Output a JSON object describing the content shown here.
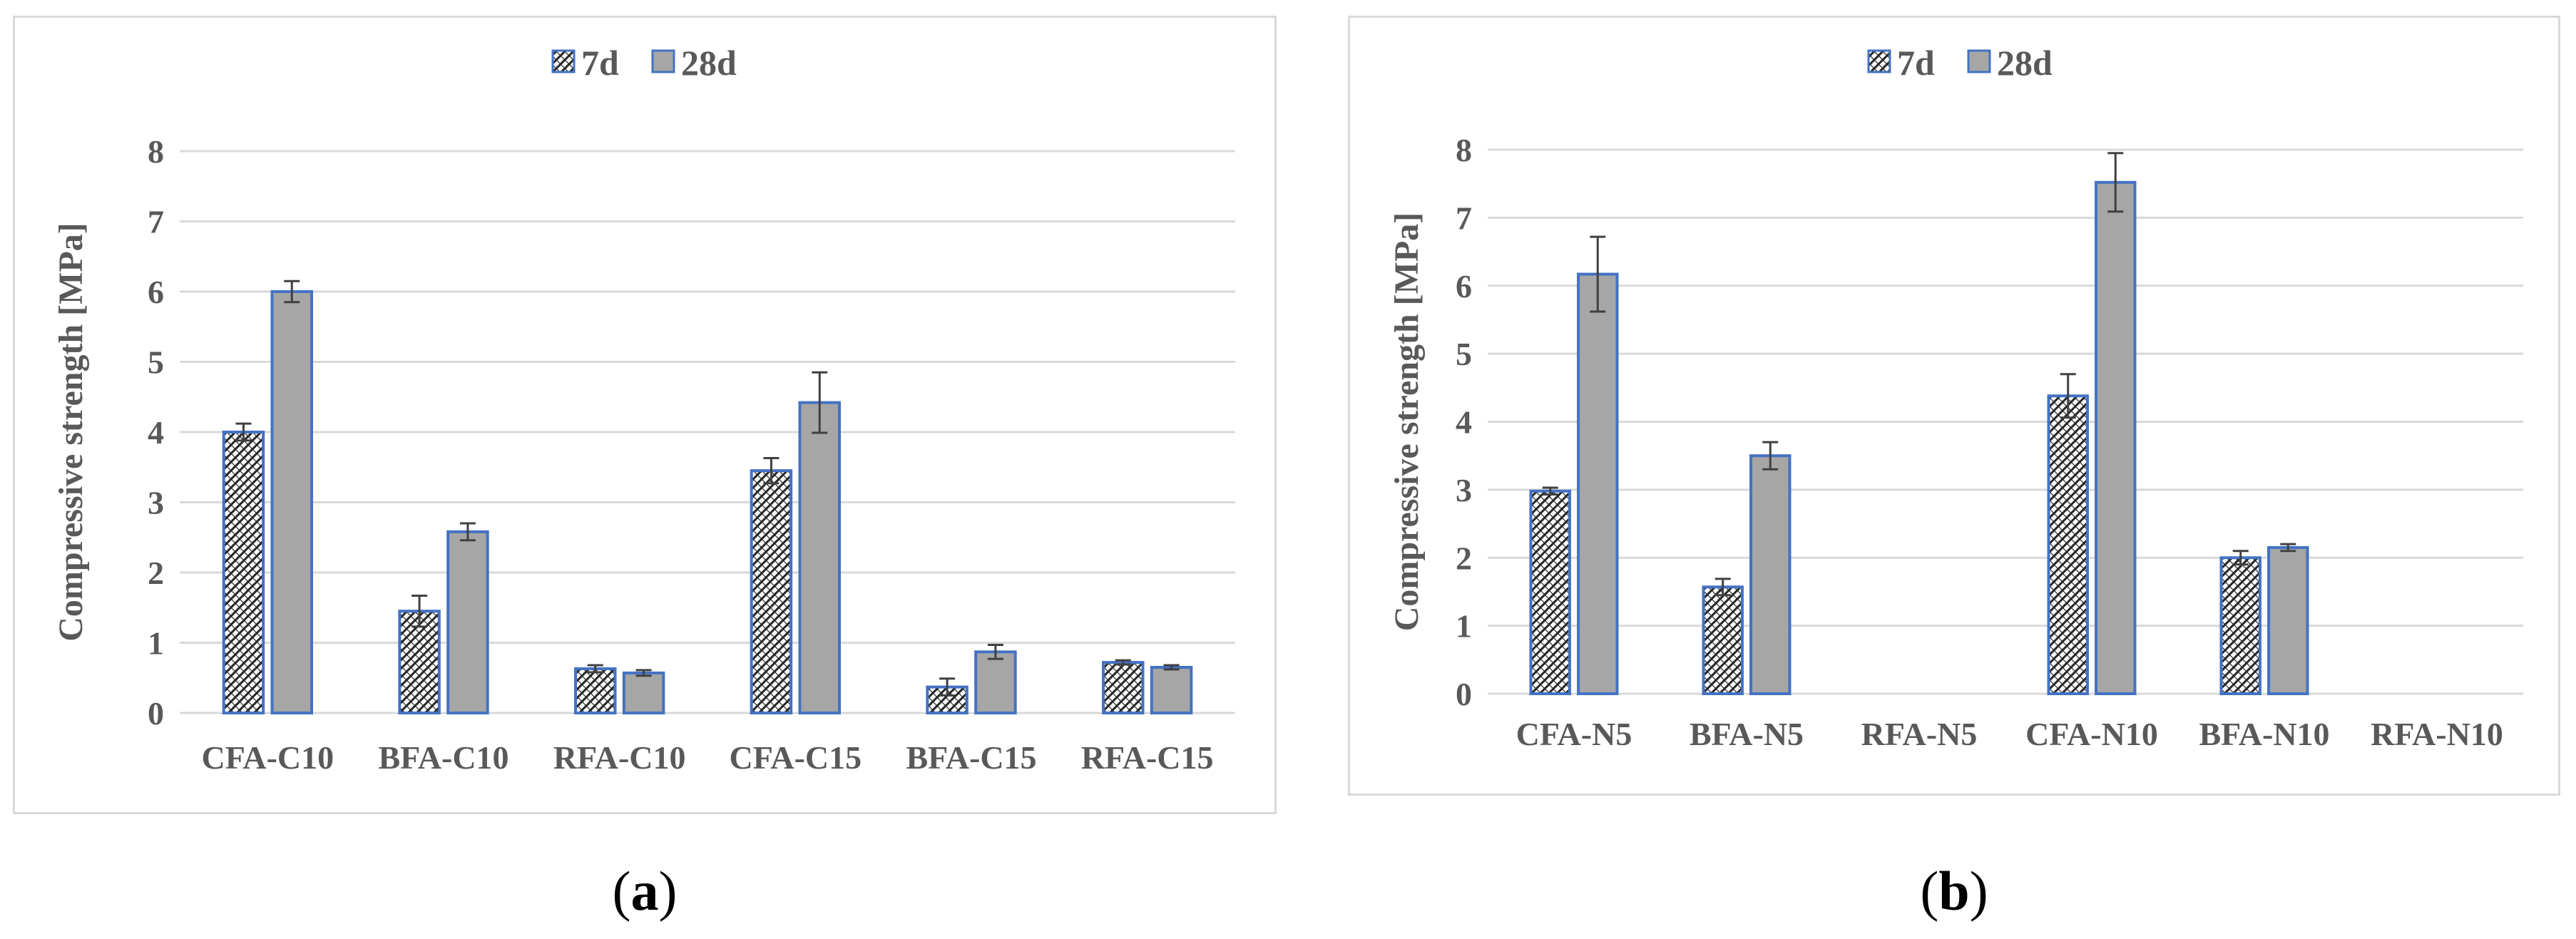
{
  "chart_data": [
    {
      "type": "bar",
      "panel": "a",
      "title": "",
      "xlabel": "",
      "ylabel": "Compressive strength [MPa]",
      "ylim": [
        0,
        8
      ],
      "yticks": [
        0,
        1,
        2,
        3,
        4,
        5,
        6,
        7,
        8
      ],
      "grid": true,
      "legend_placement": "top-center",
      "categories": [
        "CFA-C10",
        "BFA-C10",
        "RFA-C10",
        "CFA-C15",
        "BFA-C15",
        "RFA-C15"
      ],
      "series": [
        {
          "name": "7d",
          "pattern": "hatch",
          "values": [
            4.0,
            1.45,
            0.63,
            3.45,
            0.37,
            0.72
          ],
          "errors": [
            0.12,
            0.22,
            0.05,
            0.18,
            0.12,
            0.03
          ]
        },
        {
          "name": "28d",
          "pattern": "solid",
          "values": [
            6.0,
            2.58,
            0.57,
            4.42,
            0.87,
            0.65
          ],
          "errors": [
            0.15,
            0.12,
            0.04,
            0.43,
            0.1,
            0.03
          ]
        }
      ]
    },
    {
      "type": "bar",
      "panel": "b",
      "title": "",
      "xlabel": "",
      "ylabel": "Compressive strength [MPa]",
      "ylim": [
        0,
        8
      ],
      "yticks": [
        0,
        1,
        2,
        3,
        4,
        5,
        6,
        7,
        8
      ],
      "grid": true,
      "legend_placement": "top-center",
      "categories": [
        "CFA-N5",
        "BFA-N5",
        "RFA-N5",
        "CFA-N10",
        "BFA-N10",
        "RFA-N10"
      ],
      "series": [
        {
          "name": "7d",
          "pattern": "hatch",
          "values": [
            2.98,
            1.57,
            null,
            4.38,
            2.0,
            null
          ],
          "errors": [
            0.05,
            0.12,
            null,
            0.32,
            0.1,
            null
          ]
        },
        {
          "name": "28d",
          "pattern": "solid",
          "values": [
            6.17,
            3.5,
            null,
            7.52,
            2.15,
            null
          ],
          "errors": [
            0.55,
            0.2,
            null,
            0.43,
            0.05,
            null
          ]
        }
      ]
    }
  ],
  "captions": {
    "a": "a",
    "b": "b"
  },
  "colors": {
    "bar_fill": "#a6a6a6",
    "bar_stroke": "#4472c4",
    "hatch": "#262626",
    "grid": "#d9d9d9",
    "text": "#595959",
    "error": "#404040"
  }
}
